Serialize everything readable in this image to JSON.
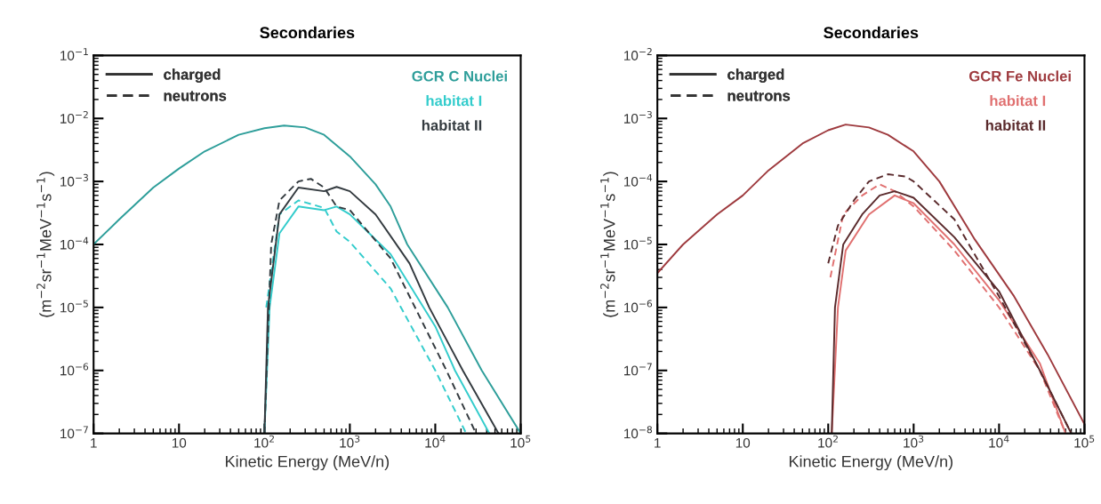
{
  "chart_data": [
    {
      "type": "line",
      "title": "Secondaries",
      "xlabel": "Kinetic Energy (MeV/n)",
      "ylabel": "(m$^{−2}$sr$^{−1}$MeV$^{−1}$s$^{−1}$)",
      "log": "xy",
      "xlim": [
        1,
        100000
      ],
      "xticks": [
        1,
        10,
        {
          "value": 100,
          "label": "10$^{2}$"
        },
        {
          "value": 1000,
          "label": "10$^{3}$"
        },
        {
          "value": 10000,
          "label": "10$^{4}$"
        },
        {
          "value": 100000,
          "label": "10$^{5}$"
        }
      ],
      "ylim": [
        1e-07,
        0.1
      ],
      "yticks": [
        {
          "value": 1e-07,
          "label": "10$^{−7}$"
        },
        {
          "value": 1e-06,
          "label": "10$^{−6}$"
        },
        {
          "value": 1e-05,
          "label": "10$^{−5}$"
        },
        {
          "value": 0.0001,
          "label": "10$^{−4}$"
        },
        {
          "value": 0.001,
          "label": "10$^{−3}$"
        },
        {
          "value": 0.01,
          "label": "10$^{−2}$"
        },
        {
          "value": 0.1,
          "label": "10$^{−1}$"
        }
      ],
      "annotations": [
        "charged",
        "neutrons"
      ],
      "legend": "top right",
      "grid": false,
      "series": [
        {
          "name": "GCR C Nuclei",
          "color": "#2e9e9a",
          "line_style": "solid",
          "x": [
            1,
            2,
            5,
            10,
            20,
            50,
            100,
            170,
            300,
            500,
            1000,
            2000,
            3000,
            4700,
            14000,
            35000,
            100000
          ],
          "values": [
            0.0001,
            0.00025,
            0.0008,
            0.0016,
            0.003,
            0.0055,
            0.007,
            0.0077,
            0.0072,
            0.0055,
            0.0025,
            0.0009,
            0.0004,
            0.0001,
            1e-05,
            1e-06,
            1e-07
          ]
        },
        {
          "name": "habitat I",
          "color": "#33cccc",
          "line_style": "solid",
          "x": [
            100,
            115,
            150,
            250,
            500,
            700,
            1000,
            3000,
            10000,
            17000,
            43000
          ],
          "values": [
            1e-07,
            1e-05,
            0.00015,
            0.0004,
            0.00035,
            0.0004,
            0.0003,
            7e-05,
            5e-06,
            1e-06,
            1e-07
          ]
        },
        {
          "color": "#33cccc",
          "line_style": "dashed",
          "x": [
            105,
            150,
            250,
            500,
            700,
            1000,
            3000,
            10000,
            23000
          ],
          "values": [
            1e-05,
            0.0003,
            0.0005,
            0.00038,
            0.00016,
            0.00011,
            2e-05,
            1e-06,
            1e-07
          ]
        },
        {
          "name": "habitat II",
          "color": "#333a3f",
          "line_style": "solid",
          "x": [
            100,
            110,
            150,
            250,
            500,
            700,
            1000,
            2000,
            5000,
            8500,
            21000,
            55000
          ],
          "values": [
            1e-07,
            1e-05,
            0.0003,
            0.0008,
            0.0007,
            0.00082,
            0.0007,
            0.0003,
            5e-05,
            1e-05,
            1e-06,
            1e-07
          ]
        },
        {
          "color": "#333a3f",
          "line_style": "dashed",
          "x": [
            100,
            120,
            150,
            250,
            350,
            500,
            700,
            1000,
            3000,
            13500,
            30000
          ],
          "values": [
            1e-07,
            0.0001,
            0.0005,
            0.001,
            0.0011,
            0.0008,
            0.0004,
            0.00035,
            6e-05,
            1e-06,
            1e-07
          ]
        }
      ]
    },
    {
      "type": "line",
      "title": "Secondaries",
      "xlabel": "Kinetic Energy (MeV/n)",
      "ylabel": "(m$^{−2}$sr$^{−1}$MeV$^{−1}$s$^{−1}$)",
      "log": "xy",
      "xlim": [
        1,
        100000
      ],
      "xticks": [
        1,
        10,
        {
          "value": 100,
          "label": "10$^{2}$"
        },
        {
          "value": 1000,
          "label": "10$^{3}$"
        },
        {
          "value": 10000,
          "label": "10$^{4}$"
        },
        {
          "value": 100000,
          "label": "10$^{5}$"
        }
      ],
      "ylim": [
        1e-08,
        0.01
      ],
      "yticks": [
        {
          "value": 1e-08,
          "label": "10$^{−8}$"
        },
        {
          "value": 1e-07,
          "label": "10$^{−7}$"
        },
        {
          "value": 1e-06,
          "label": "10$^{−6}$"
        },
        {
          "value": 1e-05,
          "label": "10$^{−5}$"
        },
        {
          "value": 0.0001,
          "label": "10$^{−4}$"
        },
        {
          "value": 0.001,
          "label": "10$^{−3}$"
        },
        {
          "value": 0.01,
          "label": "10$^{−2}$"
        }
      ],
      "annotations": [
        "charged",
        "neutrons"
      ],
      "legend": "top right",
      "grid": false,
      "series": [
        {
          "name": "GCR Fe Nuclei",
          "color": "#9e3a3e",
          "line_style": "solid",
          "x": [
            1,
            2,
            5,
            10,
            20,
            50,
            100,
            160,
            300,
            500,
            1000,
            2000,
            5200,
            15000,
            37000,
            100000
          ],
          "values": [
            3.5e-06,
            1e-05,
            3e-05,
            6e-05,
            0.00015,
            0.0004,
            0.00065,
            0.0008,
            0.00072,
            0.00055,
            0.0003,
            0.0001,
            1.2e-05,
            1.5e-06,
            1.8e-07,
            1.4e-08
          ]
        },
        {
          "name": "habitat I",
          "color": "#e07070",
          "line_style": "solid",
          "x": [
            110,
            130,
            160,
            300,
            600,
            1000,
            3000,
            10000,
            30000,
            60000
          ],
          "values": [
            1e-08,
            1e-06,
            8e-06,
            3e-05,
            6e-05,
            4.5e-05,
            1e-05,
            1.3e-06,
            1.3e-07,
            1e-08
          ]
        },
        {
          "color": "#e07070",
          "line_style": "dashed",
          "x": [
            106,
            150,
            250,
            400,
            600,
            1000,
            3000,
            10000,
            30000,
            60000
          ],
          "values": [
            3e-06,
            3e-05,
            6e-05,
            9e-05,
            7e-05,
            4e-05,
            8e-06,
            1e-06,
            1e-07,
            1e-08
          ]
        },
        {
          "name": "habitat II",
          "color": "#5a2a2c",
          "line_style": "solid",
          "x": [
            110,
            120,
            150,
            250,
            400,
            600,
            1000,
            3000,
            10000,
            30000,
            70000
          ],
          "values": [
            1e-08,
            1e-06,
            1e-05,
            3e-05,
            6e-05,
            7e-05,
            5.5e-05,
            1.3e-05,
            1.8e-06,
            1e-07,
            1e-08
          ]
        },
        {
          "color": "#5a2a2c",
          "line_style": "dashed",
          "x": [
            100,
            130,
            200,
            300,
            500,
            800,
            1000,
            3000,
            10000,
            30000,
            70000
          ],
          "values": [
            5e-06,
            2e-05,
            5e-05,
            0.0001,
            0.00013,
            0.00012,
            0.0001,
            2.5e-05,
            1.5e-06,
            1e-07,
            1e-08
          ]
        }
      ]
    }
  ]
}
